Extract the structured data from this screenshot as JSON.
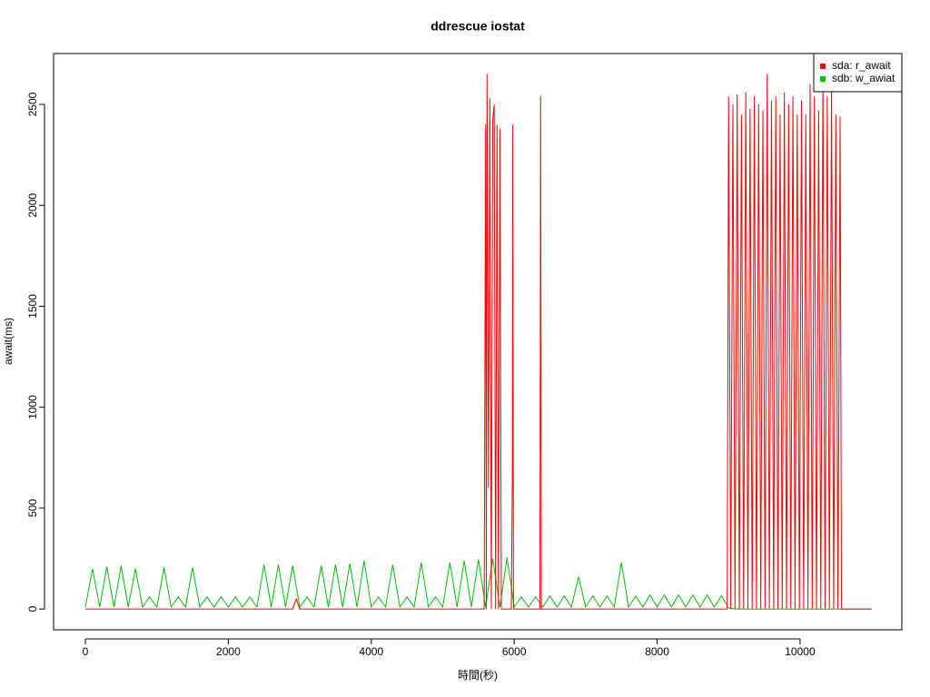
{
  "chart_data": {
    "type": "line",
    "title": "ddrescue iostat",
    "xlabel": "時間(秒)",
    "ylabel": "await(ms)",
    "xlim": [
      -445,
      11424
    ],
    "ylim": [
      -103,
      2752
    ],
    "xticks": [
      0,
      2000,
      4000,
      6000,
      8000,
      10000
    ],
    "yticks": [
      0,
      500,
      1000,
      1500,
      2000,
      2500
    ],
    "grid": false,
    "legend": "topright",
    "series": [
      {
        "name": "sda: r_await",
        "color": "#ff0000",
        "x": [
          0,
          2900,
          2950,
          3000,
          5580,
          5600,
          5610,
          5620,
          5640,
          5660,
          5680,
          5700,
          5720,
          5740,
          5760,
          5780,
          5800,
          5820,
          5960,
          5975,
          5980,
          5990,
          6360,
          6370,
          6380,
          8980,
          9000,
          9030,
          9060,
          9090,
          9120,
          9150,
          9180,
          9210,
          9240,
          9270,
          9300,
          9330,
          9360,
          9390,
          9420,
          9450,
          9480,
          9510,
          9540,
          9570,
          9600,
          9630,
          9660,
          9690,
          9720,
          9750,
          9780,
          9810,
          9840,
          9870,
          9900,
          9930,
          9960,
          9990,
          10020,
          10050,
          10080,
          10110,
          10140,
          10170,
          10200,
          10230,
          10260,
          10290,
          10320,
          10350,
          10380,
          10410,
          10440,
          10470,
          10500,
          10530,
          10560,
          10580,
          11000
        ],
        "values": [
          0,
          0,
          50,
          0,
          0,
          2400,
          0,
          2650,
          600,
          2530,
          0,
          2420,
          2500,
          0,
          2400,
          0,
          2380,
          0,
          0,
          700,
          2400,
          0,
          0,
          2540,
          0,
          0,
          2540,
          0,
          2500,
          0,
          2550,
          0,
          2450,
          0,
          2560,
          0,
          2480,
          0,
          2540,
          0,
          2500,
          0,
          2470,
          0,
          2650,
          0,
          2520,
          0,
          2540,
          0,
          2450,
          0,
          2560,
          0,
          2500,
          0,
          2540,
          0,
          2450,
          0,
          2520,
          0,
          2450,
          0,
          2600,
          0,
          2540,
          0,
          2470,
          0,
          2640,
          0,
          2540,
          0,
          2580,
          0,
          2450,
          0,
          2440,
          0,
          0
        ]
      },
      {
        "name": "sdb: w_awiat",
        "color": "#00c000",
        "x": [
          0,
          100,
          200,
          300,
          400,
          500,
          600,
          700,
          800,
          900,
          1000,
          1100,
          1200,
          1300,
          1400,
          1500,
          1600,
          1700,
          1800,
          1900,
          2000,
          2100,
          2200,
          2300,
          2400,
          2500,
          2600,
          2700,
          2800,
          2900,
          3000,
          3100,
          3200,
          3300,
          3400,
          3500,
          3600,
          3700,
          3800,
          3900,
          4000,
          4100,
          4200,
          4300,
          4400,
          4500,
          4600,
          4700,
          4800,
          4900,
          5000,
          5100,
          5200,
          5300,
          5400,
          5500,
          5600,
          5700,
          5800,
          5900,
          6000,
          6100,
          6200,
          6300,
          6400,
          6500,
          6600,
          6700,
          6800,
          6900,
          7000,
          7100,
          7200,
          7300,
          7400,
          7500,
          7600,
          7700,
          7800,
          7900,
          8000,
          8100,
          8200,
          8300,
          8400,
          8500,
          8600,
          8700,
          8800,
          8900,
          9000,
          9100,
          9200,
          9300,
          9400,
          9500,
          9600,
          9700,
          9800,
          9900,
          10000,
          10100,
          10200,
          10300,
          10400,
          10500,
          10600,
          10700,
          10800,
          10900,
          11000
        ],
        "values": [
          10,
          200,
          10,
          210,
          10,
          215,
          10,
          200,
          10,
          60,
          10,
          205,
          10,
          60,
          10,
          205,
          10,
          60,
          10,
          60,
          10,
          60,
          10,
          60,
          10,
          220,
          10,
          220,
          10,
          215,
          10,
          60,
          10,
          215,
          10,
          220,
          10,
          225,
          10,
          240,
          10,
          60,
          10,
          220,
          10,
          60,
          10,
          230,
          10,
          60,
          10,
          230,
          10,
          240,
          10,
          245,
          10,
          250,
          10,
          255,
          10,
          60,
          10,
          60,
          10,
          65,
          10,
          65,
          10,
          160,
          10,
          65,
          10,
          65,
          10,
          230,
          10,
          65,
          10,
          70,
          10,
          70,
          10,
          70,
          10,
          70,
          10,
          70,
          10,
          65,
          5,
          0,
          0,
          0,
          0,
          0,
          0,
          0,
          0,
          0,
          0,
          0,
          0,
          0,
          0,
          0,
          0,
          0,
          0,
          0,
          0
        ]
      }
    ]
  }
}
